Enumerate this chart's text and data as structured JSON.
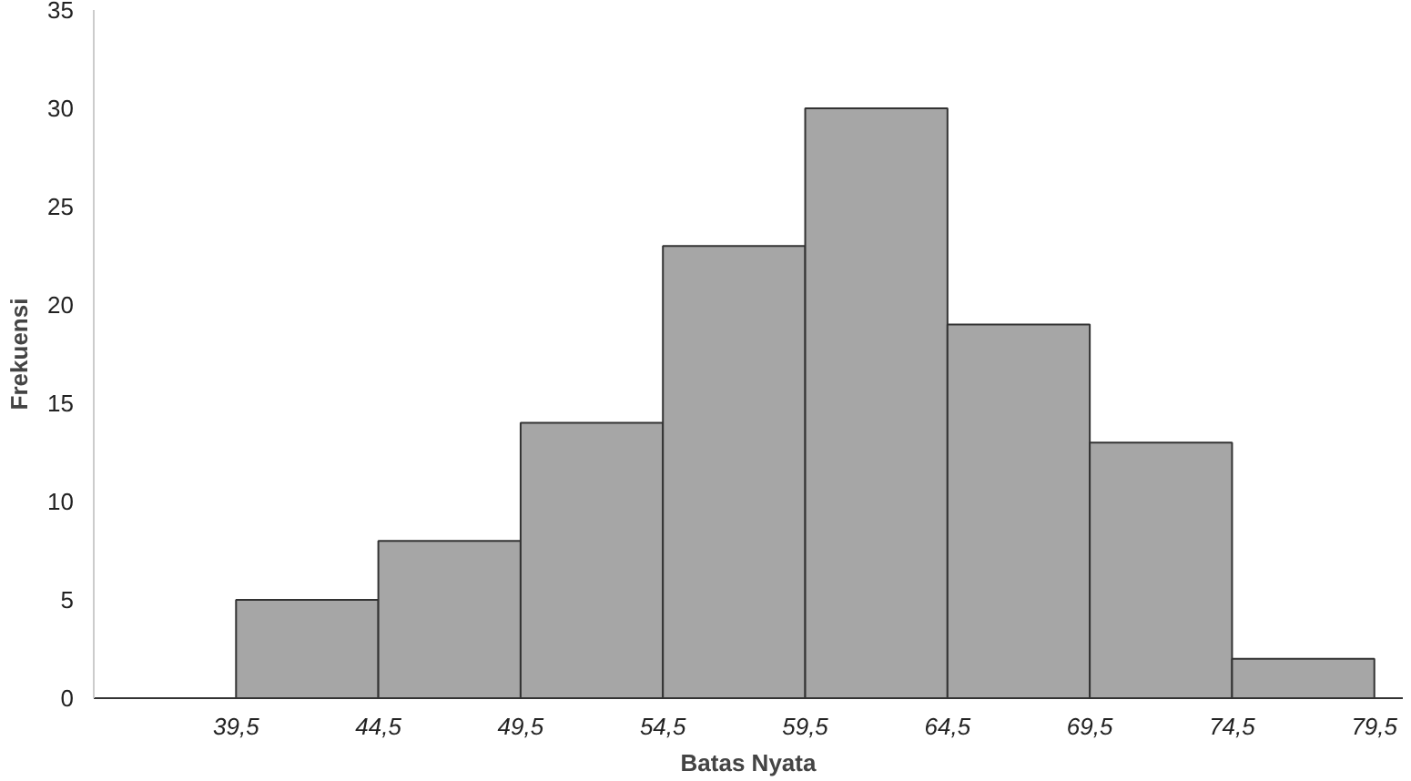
{
  "chart_data": {
    "type": "histogram",
    "xlabel": "Batas Nyata",
    "ylabel": "Frekuensi",
    "bins": [
      39.5,
      44.5,
      49.5,
      54.5,
      59.5,
      64.5,
      69.5,
      74.5,
      79.5
    ],
    "values": [
      5,
      8,
      14,
      23,
      30,
      19,
      13,
      2
    ],
    "color": "#a6a6a6",
    "xlim": [
      34.5,
      80.5
    ],
    "xticks": [
      {
        "value": 39.5,
        "label": "39,5"
      },
      {
        "value": 44.5,
        "label": "44,5"
      },
      {
        "value": 49.5,
        "label": "49,5"
      },
      {
        "value": 54.5,
        "label": "54,5"
      },
      {
        "value": 59.5,
        "label": "59,5"
      },
      {
        "value": 64.5,
        "label": "64,5"
      },
      {
        "value": 69.5,
        "label": "69,5"
      },
      {
        "value": 74.5,
        "label": "74,5"
      },
      {
        "value": 79.5,
        "label": "79,5"
      }
    ],
    "ylim": [
      0,
      35
    ],
    "yticks": [
      0,
      5,
      10,
      15,
      20,
      25,
      30,
      35
    ],
    "grid": false
  }
}
